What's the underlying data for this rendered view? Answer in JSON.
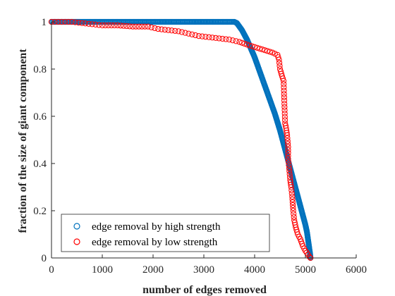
{
  "chart_data": {
    "type": "scatter",
    "xlabel": "number of edges removed",
    "ylabel": "fraction of the size of giant component",
    "xlim": [
      0,
      6000
    ],
    "ylim": [
      0,
      1
    ],
    "xticks": [
      "0",
      "1000",
      "2000",
      "3000",
      "4000",
      "5000",
      "6000"
    ],
    "yticks": [
      "0",
      "0.2",
      "0.4",
      "0.6",
      "0.8",
      "1"
    ],
    "grid": false,
    "legend_position": "bottom-left",
    "series": [
      {
        "name": "edge removal by high strength",
        "color": "#0072BD",
        "marker": "circle-open",
        "points": [
          [
            0,
            1
          ],
          [
            300,
            1
          ],
          [
            600,
            1
          ],
          [
            900,
            1
          ],
          [
            1200,
            1
          ],
          [
            1500,
            1
          ],
          [
            1800,
            1
          ],
          [
            2100,
            1
          ],
          [
            2400,
            1
          ],
          [
            2700,
            1
          ],
          [
            3000,
            1
          ],
          [
            3300,
            1
          ],
          [
            3600,
            1
          ],
          [
            3650,
            0.995
          ],
          [
            3700,
            0.98
          ],
          [
            3750,
            0.965
          ],
          [
            3800,
            0.945
          ],
          [
            3850,
            0.925
          ],
          [
            3900,
            0.9
          ],
          [
            3950,
            0.875
          ],
          [
            4000,
            0.85
          ],
          [
            4050,
            0.82
          ],
          [
            4100,
            0.79
          ],
          [
            4150,
            0.76
          ],
          [
            4200,
            0.73
          ],
          [
            4250,
            0.7
          ],
          [
            4300,
            0.67
          ],
          [
            4350,
            0.64
          ],
          [
            4400,
            0.61
          ],
          [
            4450,
            0.575
          ],
          [
            4500,
            0.54
          ],
          [
            4550,
            0.5
          ],
          [
            4600,
            0.46
          ],
          [
            4650,
            0.42
          ],
          [
            4700,
            0.38
          ],
          [
            4750,
            0.34
          ],
          [
            4800,
            0.3
          ],
          [
            4850,
            0.26
          ],
          [
            4900,
            0.22
          ],
          [
            4950,
            0.18
          ],
          [
            5000,
            0.14
          ],
          [
            5030,
            0.11
          ],
          [
            5050,
            0.08
          ],
          [
            5070,
            0.05
          ],
          [
            5090,
            0.02
          ],
          [
            5100,
            0
          ]
        ]
      },
      {
        "name": "edge removal by low strength",
        "color": "#FF0000",
        "marker": "circle-open",
        "points": [
          [
            0,
            1
          ],
          [
            200,
            1
          ],
          [
            400,
            1
          ],
          [
            600,
            0.995
          ],
          [
            800,
            0.99
          ],
          [
            1000,
            0.985
          ],
          [
            1300,
            0.985
          ],
          [
            1600,
            0.98
          ],
          [
            1900,
            0.98
          ],
          [
            2100,
            0.97
          ],
          [
            2300,
            0.965
          ],
          [
            2500,
            0.96
          ],
          [
            2700,
            0.95
          ],
          [
            2900,
            0.94
          ],
          [
            3100,
            0.935
          ],
          [
            3300,
            0.93
          ],
          [
            3500,
            0.925
          ],
          [
            3700,
            0.915
          ],
          [
            3900,
            0.9
          ],
          [
            4050,
            0.89
          ],
          [
            4200,
            0.88
          ],
          [
            4350,
            0.87
          ],
          [
            4450,
            0.86
          ],
          [
            4480,
            0.84
          ],
          [
            4500,
            0.8
          ],
          [
            4540,
            0.77
          ],
          [
            4570,
            0.75
          ],
          [
            4600,
            0.57
          ],
          [
            4620,
            0.55
          ],
          [
            4640,
            0.52
          ],
          [
            4660,
            0.47
          ],
          [
            4660,
            0.42
          ],
          [
            4680,
            0.38
          ],
          [
            4700,
            0.33
          ],
          [
            4720,
            0.3
          ],
          [
            4740,
            0.26
          ],
          [
            4760,
            0.2
          ],
          [
            4780,
            0.16
          ],
          [
            4810,
            0.13
          ],
          [
            4850,
            0.1
          ],
          [
            4900,
            0.08
          ],
          [
            4950,
            0.05
          ],
          [
            5000,
            0.03
          ],
          [
            5050,
            0.015
          ],
          [
            5080,
            0.005
          ],
          [
            5100,
            0
          ]
        ]
      }
    ]
  }
}
